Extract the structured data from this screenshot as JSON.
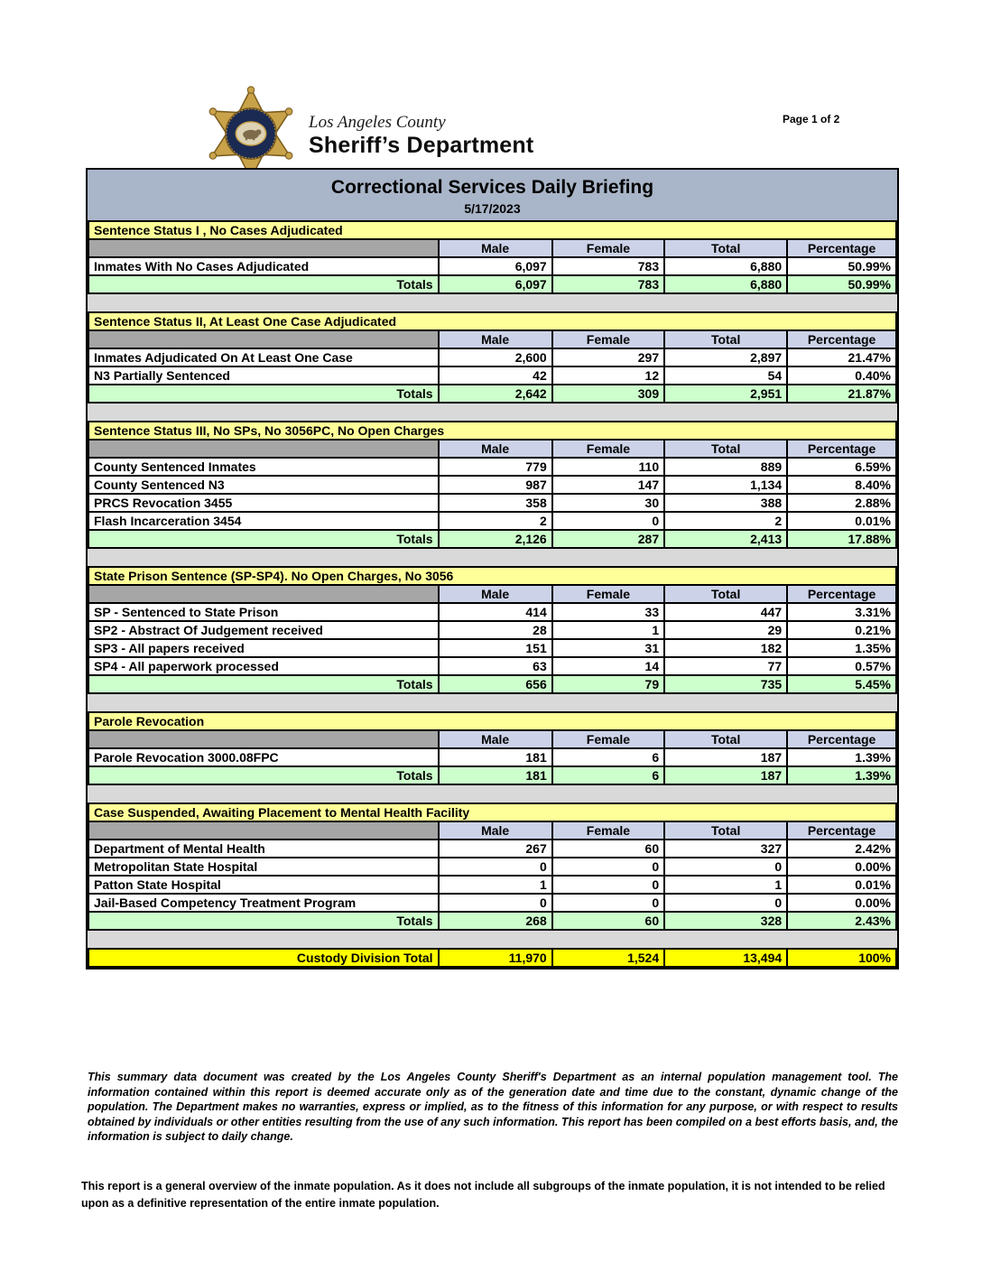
{
  "page": {
    "page_number": "Page 1 of 2"
  },
  "logo": {
    "county": "Los Angeles County",
    "department": "Sheriff’s Department",
    "registered": "®",
    "badge_icon": "sheriff-star-badge",
    "badge_colors": {
      "gold": "#c9a34a",
      "gold_dark": "#7a5c1e",
      "ring": "#1b2a52",
      "oval": "#ddd3b4",
      "bear": "#7d6b4a"
    }
  },
  "report": {
    "title": "Correctional Services Daily Briefing",
    "date": "5/17/2023",
    "columns": [
      "Male",
      "Female",
      "Total",
      "Percentage"
    ],
    "totals_label": "Totals",
    "sections": [
      {
        "title": "Sentence Status I , No Cases Adjudicated",
        "rows": [
          {
            "label": "Inmates With No Cases Adjudicated",
            "male": "6,097",
            "female": "783",
            "total": "6,880",
            "percentage": "50.99%"
          }
        ],
        "totals": {
          "male": "6,097",
          "female": "783",
          "total": "6,880",
          "percentage": "50.99%"
        }
      },
      {
        "title": "Sentence Status II, At Least One Case Adjudicated",
        "rows": [
          {
            "label": "Inmates Adjudicated On At Least One Case",
            "male": "2,600",
            "female": "297",
            "total": "2,897",
            "percentage": "21.47%"
          },
          {
            "label": "N3 Partially Sentenced",
            "male": "42",
            "female": "12",
            "total": "54",
            "percentage": "0.40%"
          }
        ],
        "totals": {
          "male": "2,642",
          "female": "309",
          "total": "2,951",
          "percentage": "21.87%"
        }
      },
      {
        "title": "Sentence Status III, No SPs, No 3056PC, No Open Charges",
        "rows": [
          {
            "label": "County Sentenced Inmates",
            "male": "779",
            "female": "110",
            "total": "889",
            "percentage": "6.59%"
          },
          {
            "label": "County Sentenced N3",
            "male": "987",
            "female": "147",
            "total": "1,134",
            "percentage": "8.40%"
          },
          {
            "label": "PRCS Revocation 3455",
            "male": "358",
            "female": "30",
            "total": "388",
            "percentage": "2.88%"
          },
          {
            "label": "Flash Incarceration 3454",
            "male": "2",
            "female": "0",
            "total": "2",
            "percentage": "0.01%"
          }
        ],
        "totals": {
          "male": "2,126",
          "female": "287",
          "total": "2,413",
          "percentage": "17.88%"
        }
      },
      {
        "title": "State Prison Sentence (SP-SP4). No Open Charges, No 3056",
        "rows": [
          {
            "label": "SP - Sentenced to State Prison",
            "male": "414",
            "female": "33",
            "total": "447",
            "percentage": "3.31%"
          },
          {
            "label": "SP2 - Abstract Of Judgement received",
            "male": "28",
            "female": "1",
            "total": "29",
            "percentage": "0.21%"
          },
          {
            "label": "SP3 - All papers received",
            "male": "151",
            "female": "31",
            "total": "182",
            "percentage": "1.35%"
          },
          {
            "label": "SP4 - All paperwork processed",
            "male": "63",
            "female": "14",
            "total": "77",
            "percentage": "0.57%"
          }
        ],
        "totals": {
          "male": "656",
          "female": "79",
          "total": "735",
          "percentage": "5.45%"
        }
      },
      {
        "title": "Parole Revocation",
        "rows": [
          {
            "label": "Parole Revocation 3000.08FPC",
            "male": "181",
            "female": "6",
            "total": "187",
            "percentage": "1.39%"
          }
        ],
        "totals": {
          "male": "181",
          "female": "6",
          "total": "187",
          "percentage": "1.39%"
        }
      },
      {
        "title": "Case Suspended, Awaiting Placement to Mental Health Facility",
        "rows": [
          {
            "label": "Department of Mental Health",
            "male": "267",
            "female": "60",
            "total": "327",
            "percentage": "2.42%"
          },
          {
            "label": "Metropolitan State Hospital",
            "male": "0",
            "female": "0",
            "total": "0",
            "percentage": "0.00%"
          },
          {
            "label": "Patton State Hospital",
            "male": "1",
            "female": "0",
            "total": "1",
            "percentage": "0.01%"
          },
          {
            "label": "Jail-Based Competency Treatment Program",
            "male": "0",
            "female": "0",
            "total": "0",
            "percentage": "0.00%"
          }
        ],
        "totals": {
          "male": "268",
          "female": "60",
          "total": "328",
          "percentage": "2.43%"
        }
      }
    ],
    "custody_total": {
      "label": "Custody Division Total",
      "male": "11,970",
      "female": "1,524",
      "total": "13,494",
      "percentage": "100%"
    }
  },
  "footer": {
    "disclaimer": "This summary data document was created by the Los Angeles County Sheriff's Department as an internal population management tool.  The information contained within this report is deemed accurate only as of the generation date and time due to the constant, dynamic change of the population.  The Department makes no warranties, express or implied, as to the fitness of this information for any purpose, or with respect to results obtained by individuals or other entities resulting from the use of any such information.  This report has been compiled on a best efforts basis, and, the information is subject to daily change.",
    "note": "This report is a general overview of the inmate population.  As it does not include all subgroups of the inmate population, it is not intended to be relied upon as a definitive representation of the entire inmate population."
  },
  "colors": {
    "title_bar": "#a9b5c8",
    "section_header": "#ffff99",
    "column_header": "#ccd3e8",
    "totals_row": "#ccffcc",
    "custody_row": "#ffff00",
    "corner_cell": "#a6a6a6",
    "spacer": "#d9d9d9"
  }
}
